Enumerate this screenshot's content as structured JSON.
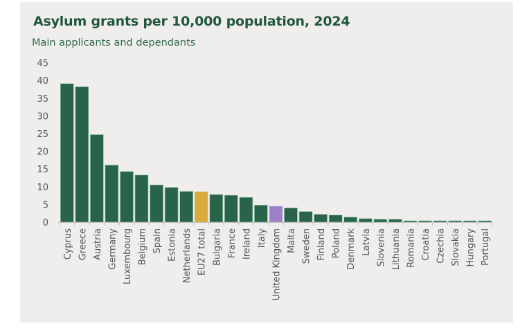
{
  "colors": {
    "default_bar": "#29634a",
    "eu27_bar": "#d9a93b",
    "uk_bar": "#9b82c8",
    "title": "#21573f",
    "axis_text": "#555555",
    "card_background": "#efeeec"
  },
  "chart_data": {
    "type": "bar",
    "title": "Asylum grants per 10,000 population, 2024",
    "subtitle": "Main applicants and dependants",
    "xlabel": "",
    "ylabel": "",
    "ylim": [
      0,
      45
    ],
    "yticks": [
      0,
      5,
      10,
      15,
      20,
      25,
      30,
      35,
      40,
      45
    ],
    "grid": false,
    "legend": "none",
    "categories": [
      "Cyprus",
      "Greece",
      "Austria",
      "Germany",
      "Luxembourg",
      "Belgium",
      "Spain",
      "Estonia",
      "Netherlands",
      "EU27 total",
      "Bulgaria",
      "France",
      "Ireland",
      "Italy",
      "United Kingdom",
      "Malta",
      "Sweden",
      "Finland",
      "Poland",
      "Denmark",
      "Latvia",
      "Slovenia",
      "Lithuania",
      "Romania",
      "Croatia",
      "Czechia",
      "Slovakia",
      "Hungary",
      "Portugal"
    ],
    "values": [
      39.1,
      38.2,
      24.7,
      16.1,
      14.3,
      13.3,
      10.5,
      9.8,
      8.7,
      8.6,
      7.8,
      7.6,
      7.0,
      4.8,
      4.5,
      4.0,
      3.0,
      2.2,
      2.0,
      1.4,
      1.0,
      0.8,
      0.8,
      0.4,
      0.4,
      0.4,
      0.4,
      0.4,
      0.4
    ],
    "highlight": {
      "EU27 total": "eu27_bar",
      "United Kingdom": "uk_bar"
    }
  }
}
